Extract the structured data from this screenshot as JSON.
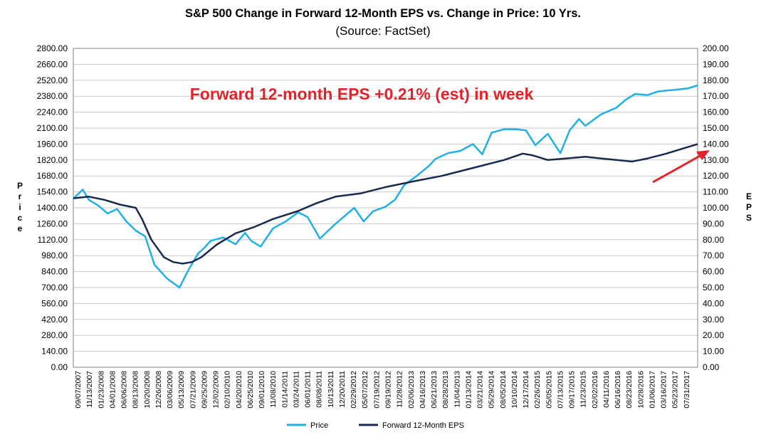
{
  "chart_data": {
    "type": "line",
    "title": "S&P 500 Change in Forward 12-Month EPS vs. Change in Price: 10 Yrs.",
    "subtitle": "(Source: FactSet)",
    "annotation": "Forward 12-month EPS +0.21% (est) in week",
    "colors": {
      "price": "#1fb0e8",
      "eps": "#1a2a4f",
      "annotation": "#e3222a",
      "grid": "#c8c8c8"
    },
    "y_left": {
      "label": "Price",
      "range": [
        0,
        2800
      ],
      "ticks": [
        "0.00",
        "140.00",
        "280.00",
        "420.00",
        "560.00",
        "700.00",
        "840.00",
        "980.00",
        "1120.00",
        "1260.00",
        "1400.00",
        "1540.00",
        "1680.00",
        "1820.00",
        "1960.00",
        "2100.00",
        "2240.00",
        "2380.00",
        "2520.00",
        "2660.00",
        "2800.00"
      ]
    },
    "y_right": {
      "label": "EPS",
      "range": [
        0,
        200
      ],
      "ticks": [
        "0.00",
        "10.00",
        "20.00",
        "30.00",
        "40.00",
        "50.00",
        "60.00",
        "70.00",
        "80.00",
        "90.00",
        "100.00",
        "110.00",
        "120.00",
        "130.00",
        "140.00",
        "150.00",
        "160.00",
        "170.00",
        "180.00",
        "190.00",
        "200.00"
      ]
    },
    "x_ticks": [
      "09/07/2007",
      "11/13/2007",
      "01/23/2008",
      "04/01/2008",
      "06/06/2008",
      "08/13/2008",
      "10/20/2008",
      "12/26/2008",
      "03/06/2009",
      "05/13/2009",
      "07/21/2009",
      "09/25/2009",
      "12/02/2009",
      "02/10/2010",
      "04/20/2010",
      "06/25/2010",
      "09/01/2010",
      "11/08/2010",
      "01/14/2011",
      "03/24/2011",
      "06/01/2011",
      "08/08/2011",
      "10/13/2011",
      "12/20/2011",
      "02/29/2012",
      "05/07/2012",
      "07/19/2012",
      "09/19/2012",
      "11/28/2012",
      "02/06/2013",
      "04/16/2013",
      "06/21/2013",
      "08/28/2013",
      "11/04/2013",
      "01/13/2014",
      "03/21/2014",
      "05/29/2014",
      "08/05/2014",
      "10/10/2014",
      "12/17/2014",
      "02/26/2015",
      "05/05/2015",
      "07/13/2015",
      "09/17/2015",
      "11/23/2015",
      "02/02/2016",
      "04/11/2016",
      "06/16/2016",
      "08/23/2016",
      "10/28/2016",
      "01/06/2017",
      "03/16/2017",
      "05/23/2017",
      "07/31/2017"
    ],
    "x_range": [
      0,
      10
    ],
    "series": [
      {
        "name": "Price",
        "axis": "left",
        "x": [
          0,
          0.15,
          0.25,
          0.4,
          0.55,
          0.7,
          0.85,
          1.0,
          1.15,
          1.3,
          1.5,
          1.7,
          1.85,
          2.0,
          2.1,
          2.2,
          2.4,
          2.6,
          2.75,
          2.85,
          3.0,
          3.2,
          3.4,
          3.6,
          3.75,
          3.95,
          4.2,
          4.5,
          4.65,
          4.8,
          5.0,
          5.15,
          5.3,
          5.5,
          5.7,
          5.8,
          6.0,
          6.2,
          6.4,
          6.55,
          6.7,
          6.9,
          7.1,
          7.25,
          7.4,
          7.6,
          7.8,
          7.95,
          8.1,
          8.2,
          8.3,
          8.45,
          8.7,
          8.85,
          9.0,
          9.2,
          9.35,
          9.5,
          9.7,
          9.85,
          10.0
        ],
        "y": [
          1480,
          1560,
          1470,
          1420,
          1350,
          1390,
          1280,
          1200,
          1150,
          900,
          780,
          700,
          860,
          1000,
          1050,
          1110,
          1140,
          1080,
          1180,
          1110,
          1060,
          1220,
          1280,
          1360,
          1320,
          1130,
          1260,
          1400,
          1280,
          1370,
          1410,
          1470,
          1600,
          1680,
          1770,
          1830,
          1880,
          1900,
          1960,
          1870,
          2060,
          2090,
          2090,
          2080,
          1950,
          2050,
          1880,
          2080,
          2180,
          2120,
          2160,
          2220,
          2280,
          2350,
          2400,
          2390,
          2420,
          2430,
          2440,
          2450,
          2475
        ]
      },
      {
        "name": "Forward 12-Month EPS",
        "axis": "right",
        "x": [
          0,
          0.25,
          0.5,
          0.75,
          1.0,
          1.1,
          1.25,
          1.45,
          1.6,
          1.75,
          1.9,
          2.05,
          2.3,
          2.6,
          2.9,
          3.2,
          3.6,
          3.9,
          4.2,
          4.6,
          5.0,
          5.5,
          5.9,
          6.4,
          6.9,
          7.2,
          7.35,
          7.6,
          7.9,
          8.2,
          8.45,
          8.7,
          8.95,
          9.2,
          9.5,
          9.75,
          10.0
        ],
        "y": [
          106,
          107,
          105,
          102,
          100,
          93,
          80,
          69,
          66,
          65,
          66,
          69,
          77,
          84,
          88,
          93,
          98,
          103,
          107,
          109,
          113,
          117,
          120,
          125,
          130,
          134,
          133,
          130,
          131,
          132,
          131,
          130,
          129,
          131,
          134,
          137,
          140
        ]
      }
    ],
    "legend": {
      "position": "bottom-center",
      "entries": [
        "Price",
        "Forward 12-Month EPS"
      ]
    }
  }
}
